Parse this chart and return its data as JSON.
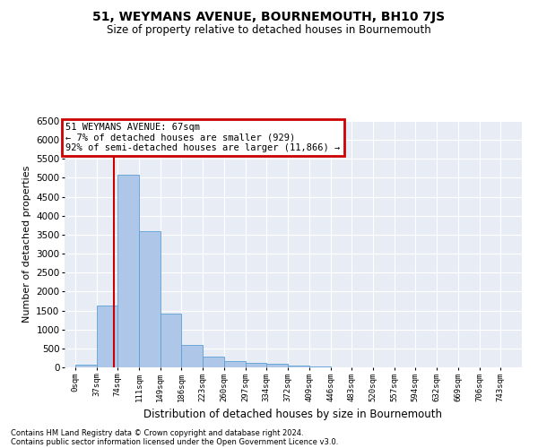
{
  "title": "51, WEYMANS AVENUE, BOURNEMOUTH, BH10 7JS",
  "subtitle": "Size of property relative to detached houses in Bournemouth",
  "xlabel": "Distribution of detached houses by size in Bournemouth",
  "ylabel": "Number of detached properties",
  "footnote1": "Contains HM Land Registry data © Crown copyright and database right 2024.",
  "footnote2": "Contains public sector information licensed under the Open Government Licence v3.0.",
  "annotation_line1": "51 WEYMANS AVENUE: 67sqm",
  "annotation_line2": "← 7% of detached houses are smaller (929)",
  "annotation_line3": "92% of semi-detached houses are larger (11,866) →",
  "bar_categories": [
    "0sqm",
    "37sqm",
    "74sqm",
    "111sqm",
    "149sqm",
    "186sqm",
    "223sqm",
    "260sqm",
    "297sqm",
    "334sqm",
    "372sqm",
    "409sqm",
    "446sqm",
    "483sqm",
    "520sqm",
    "557sqm",
    "594sqm",
    "632sqm",
    "669sqm",
    "706sqm",
    "743sqm"
  ],
  "bar_values": [
    60,
    1630,
    5080,
    3600,
    1410,
    590,
    290,
    155,
    130,
    95,
    50,
    30,
    10,
    5,
    2,
    1,
    0,
    0,
    0,
    0,
    0
  ],
  "bar_color": "#aec6e8",
  "bar_edge_color": "#5a9fd4",
  "vline_x": 67,
  "vline_color": "#cc0000",
  "annotation_box_color": "#cc0000",
  "bg_color": "#e8ecf5",
  "ylim": [
    0,
    6500
  ],
  "bin_width": 37,
  "yticks": [
    0,
    500,
    1000,
    1500,
    2000,
    2500,
    3000,
    3500,
    4000,
    4500,
    5000,
    5500,
    6000,
    6500
  ]
}
